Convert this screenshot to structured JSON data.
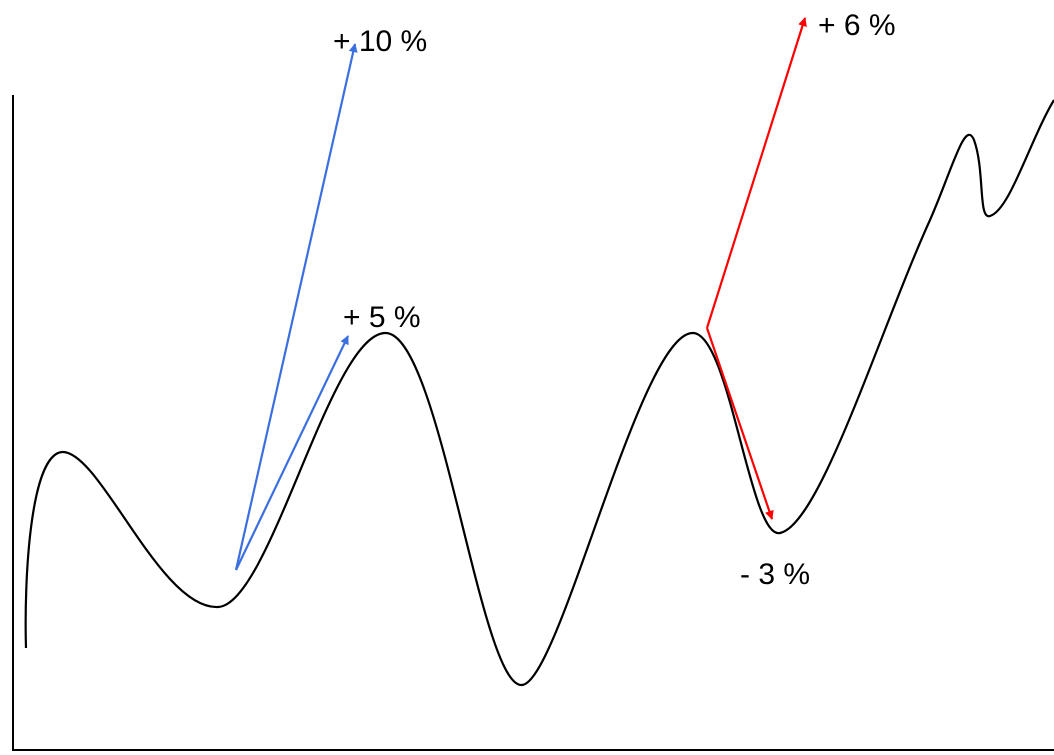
{
  "colors": {
    "curve": "#000000",
    "axes": "#000000",
    "blue_arrows": "#3b6fe0",
    "red_arrows": "#ff0000",
    "background": "#ffffff"
  },
  "labels": {
    "plus_10": "+ 10 %",
    "plus_5": "+ 5 %",
    "plus_6": "+ 6 %",
    "minus_3": "- 3 %"
  }
}
